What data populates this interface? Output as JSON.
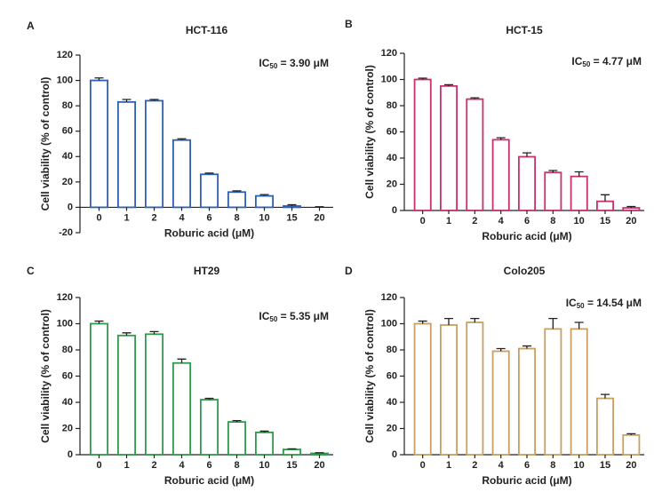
{
  "chart_data": [
    {
      "type": "bar",
      "panel": "A",
      "title": "HCT-116",
      "ic50_label": "IC",
      "ic50_sub": "50",
      "ic50_value": " = 3.90 μM",
      "x_label": "Roburic acid (μM)",
      "y_label": "Cell viability (% of control)",
      "categories": [
        "0",
        "1",
        "2",
        "4",
        "6",
        "8",
        "10",
        "15",
        "20"
      ],
      "values": [
        100,
        83,
        84,
        53,
        26,
        12,
        9,
        1,
        0
      ],
      "errors": [
        2,
        2,
        1,
        1,
        1,
        1,
        1,
        1,
        0.5
      ],
      "color": "#2d5fb5",
      "ylim": [
        -20,
        120
      ],
      "yticks": [
        -20,
        0,
        20,
        40,
        60,
        80,
        100,
        120
      ]
    },
    {
      "type": "bar",
      "panel": "B",
      "title": "HCT-15",
      "ic50_label": "IC",
      "ic50_sub": "50",
      "ic50_value": " = 4.77 μM",
      "x_label": "Roburic acid (μM)",
      "y_label": "Cell viability (% of control)",
      "categories": [
        "0",
        "1",
        "2",
        "4",
        "6",
        "8",
        "10",
        "15",
        "20"
      ],
      "values": [
        100,
        95,
        85,
        54,
        41,
        29,
        26,
        7,
        2
      ],
      "errors": [
        1,
        1,
        1,
        1.5,
        3,
        1.5,
        3.5,
        5,
        1
      ],
      "color": "#c8306e",
      "ylim": [
        0,
        120
      ],
      "yticks": [
        0,
        20,
        40,
        60,
        80,
        100,
        120
      ]
    },
    {
      "type": "bar",
      "panel": "C",
      "title": "HT29",
      "ic50_label": "IC",
      "ic50_sub": "50",
      "ic50_value": " = 5.35 μM",
      "x_label": "Roburic acid (μM)",
      "y_label": "Cell viability (% of control)",
      "categories": [
        "0",
        "1",
        "2",
        "4",
        "6",
        "8",
        "10",
        "15",
        "20"
      ],
      "values": [
        100,
        91,
        92,
        70,
        42,
        25,
        17,
        4,
        1
      ],
      "errors": [
        2,
        2,
        2,
        3,
        1,
        1,
        1,
        0.5,
        0.5
      ],
      "color": "#2f9a4a",
      "ylim": [
        0,
        120
      ],
      "yticks": [
        0,
        20,
        40,
        60,
        80,
        100,
        120
      ]
    },
    {
      "type": "bar",
      "panel": "D",
      "title": "Colo205",
      "ic50_label": "IC",
      "ic50_sub": "50",
      "ic50_value": " = 14.54 μM",
      "x_label": "Roburic acid (μM)",
      "y_label": "Cell viability (% of control)",
      "categories": [
        "0",
        "1",
        "2",
        "4",
        "6",
        "8",
        "10",
        "15",
        "20"
      ],
      "values": [
        100,
        99,
        101,
        79,
        81,
        96,
        96,
        43,
        15
      ],
      "errors": [
        2,
        5,
        3,
        2,
        2,
        8,
        5,
        3,
        1
      ],
      "color": "#c9a062",
      "ylim": [
        0,
        120
      ],
      "yticks": [
        0,
        20,
        40,
        60,
        80,
        100,
        120
      ]
    }
  ]
}
